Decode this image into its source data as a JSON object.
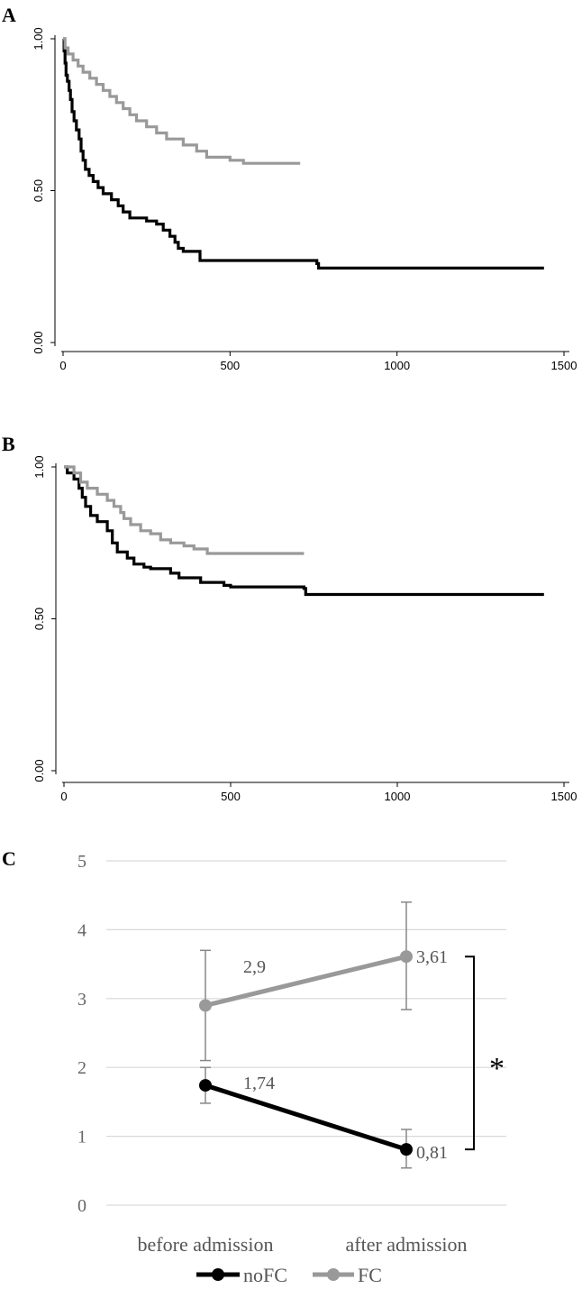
{
  "panels": {
    "a": "A",
    "b": "B",
    "c": "C"
  },
  "colors": {
    "noFC": "#000000",
    "FC": "#999999",
    "errorbar": "#888888",
    "grid": "#d9d9d9"
  },
  "chart_data": [
    {
      "panel": "A",
      "type": "line",
      "step": true,
      "xlim": [
        0,
        1500
      ],
      "ylim": [
        0,
        1
      ],
      "x_ticks": [
        0,
        500,
        1000,
        1500
      ],
      "x_tick_labels": [
        "0",
        "500",
        "1000",
        "1500"
      ],
      "y_ticks": [
        0,
        0.5,
        1
      ],
      "y_tick_labels": [
        "0.00",
        "0.50",
        "1.00"
      ],
      "grid": false,
      "series": [
        {
          "key": "black",
          "points": [
            [
              0,
              1.0
            ],
            [
              3,
              0.96
            ],
            [
              6,
              0.92
            ],
            [
              9,
              0.88
            ],
            [
              13,
              0.86
            ],
            [
              18,
              0.83
            ],
            [
              22,
              0.8
            ],
            [
              27,
              0.76
            ],
            [
              33,
              0.73
            ],
            [
              40,
              0.7
            ],
            [
              48,
              0.67
            ],
            [
              54,
              0.63
            ],
            [
              60,
              0.6
            ],
            [
              67,
              0.57
            ],
            [
              78,
              0.55
            ],
            [
              90,
              0.53
            ],
            [
              105,
              0.51
            ],
            [
              120,
              0.49
            ],
            [
              145,
              0.47
            ],
            [
              165,
              0.45
            ],
            [
              180,
              0.43
            ],
            [
              200,
              0.41
            ],
            [
              250,
              0.4
            ],
            [
              280,
              0.39
            ],
            [
              300,
              0.37
            ],
            [
              320,
              0.35
            ],
            [
              335,
              0.33
            ],
            [
              345,
              0.31
            ],
            [
              360,
              0.3
            ],
            [
              410,
              0.27
            ],
            [
              760,
              0.26
            ],
            [
              765,
              0.245
            ],
            [
              1440,
              0.245
            ]
          ]
        },
        {
          "key": "gray",
          "points": [
            [
              0,
              1.0
            ],
            [
              6,
              0.97
            ],
            [
              15,
              0.95
            ],
            [
              30,
              0.93
            ],
            [
              45,
              0.91
            ],
            [
              60,
              0.89
            ],
            [
              80,
              0.87
            ],
            [
              100,
              0.85
            ],
            [
              120,
              0.83
            ],
            [
              140,
              0.81
            ],
            [
              160,
              0.79
            ],
            [
              180,
              0.77
            ],
            [
              200,
              0.75
            ],
            [
              220,
              0.73
            ],
            [
              250,
              0.71
            ],
            [
              280,
              0.69
            ],
            [
              310,
              0.67
            ],
            [
              360,
              0.65
            ],
            [
              400,
              0.63
            ],
            [
              430,
              0.61
            ],
            [
              500,
              0.6
            ],
            [
              540,
              0.59
            ],
            [
              710,
              0.59
            ]
          ]
        }
      ]
    },
    {
      "panel": "B",
      "type": "line",
      "step": true,
      "xlim": [
        0,
        1500
      ],
      "ylim": [
        0,
        1
      ],
      "x_ticks": [
        0,
        500,
        1000,
        1500
      ],
      "x_tick_labels": [
        "0",
        "500",
        "1000",
        "1500"
      ],
      "y_ticks": [
        0,
        0.5,
        1
      ],
      "y_tick_labels": [
        "0.00",
        "0.50",
        "1.00"
      ],
      "grid": false,
      "series": [
        {
          "key": "black",
          "points": [
            [
              0,
              1.0
            ],
            [
              10,
              0.98
            ],
            [
              30,
              0.96
            ],
            [
              45,
              0.93
            ],
            [
              55,
              0.9
            ],
            [
              65,
              0.87
            ],
            [
              80,
              0.84
            ],
            [
              100,
              0.82
            ],
            [
              130,
              0.79
            ],
            [
              145,
              0.75
            ],
            [
              160,
              0.72
            ],
            [
              190,
              0.7
            ],
            [
              210,
              0.68
            ],
            [
              240,
              0.67
            ],
            [
              260,
              0.665
            ],
            [
              320,
              0.65
            ],
            [
              345,
              0.635
            ],
            [
              410,
              0.62
            ],
            [
              480,
              0.61
            ],
            [
              500,
              0.605
            ],
            [
              720,
              0.6
            ],
            [
              725,
              0.58
            ],
            [
              1440,
              0.58
            ]
          ]
        },
        {
          "key": "gray",
          "points": [
            [
              0,
              1.0
            ],
            [
              30,
              0.98
            ],
            [
              50,
              0.95
            ],
            [
              70,
              0.93
            ],
            [
              100,
              0.91
            ],
            [
              130,
              0.89
            ],
            [
              150,
              0.87
            ],
            [
              170,
              0.85
            ],
            [
              180,
              0.83
            ],
            [
              200,
              0.81
            ],
            [
              230,
              0.79
            ],
            [
              260,
              0.78
            ],
            [
              290,
              0.76
            ],
            [
              320,
              0.75
            ],
            [
              360,
              0.74
            ],
            [
              390,
              0.73
            ],
            [
              430,
              0.715
            ],
            [
              720,
              0.715
            ]
          ]
        }
      ]
    },
    {
      "panel": "C",
      "type": "line",
      "categories": [
        "before admission",
        "after admission"
      ],
      "ylim": [
        0,
        5
      ],
      "y_ticks": [
        0,
        1,
        2,
        3,
        4,
        5
      ],
      "y_tick_labels": [
        "0",
        "1",
        "2",
        "3",
        "4",
        "5"
      ],
      "grid": true,
      "legend_position": "bottom",
      "significance": "*",
      "series": [
        {
          "name": "noFC",
          "values": [
            1.74,
            0.81
          ],
          "labels": [
            "1,74",
            "0,81"
          ],
          "err_low": [
            1.48,
            0.54
          ],
          "err_high": [
            2.0,
            1.1
          ]
        },
        {
          "name": "FC",
          "values": [
            2.9,
            3.61
          ],
          "labels": [
            "2,9",
            "3,61"
          ],
          "err_low": [
            2.1,
            2.84
          ],
          "err_high": [
            3.7,
            4.4
          ]
        }
      ]
    }
  ]
}
